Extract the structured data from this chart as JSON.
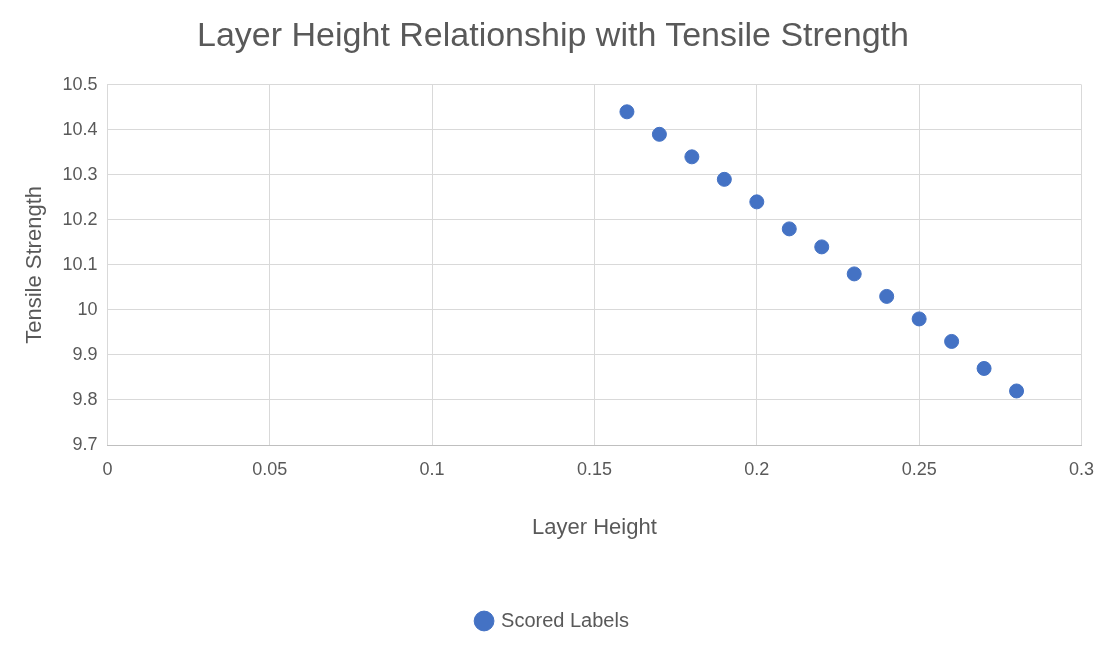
{
  "chart_data": {
    "type": "scatter",
    "title": "Layer Height Relationship with Tensile Strength",
    "xlabel": "Layer Height",
    "ylabel": "Tensile Strength",
    "x": [
      0.16,
      0.17,
      0.18,
      0.19,
      0.2,
      0.21,
      0.22,
      0.23,
      0.24,
      0.25,
      0.26,
      0.27,
      0.28
    ],
    "series": [
      {
        "name": "Scored Labels",
        "color": "#4472c4",
        "values": [
          10.44,
          10.39,
          10.34,
          10.29,
          10.24,
          10.18,
          10.14,
          10.08,
          10.03,
          9.98,
          9.93,
          9.87,
          9.82
        ]
      }
    ],
    "xlim": [
      0,
      0.3
    ],
    "xticks": [
      0,
      0.05,
      0.1,
      0.15,
      0.2,
      0.25,
      0.3
    ],
    "ylim": [
      9.7,
      10.5
    ],
    "yticks": [
      9.7,
      9.8,
      9.9,
      10,
      10.1,
      10.2,
      10.3,
      10.4,
      10.5
    ],
    "grid": true,
    "legend": "bottom",
    "marker": "circle"
  }
}
